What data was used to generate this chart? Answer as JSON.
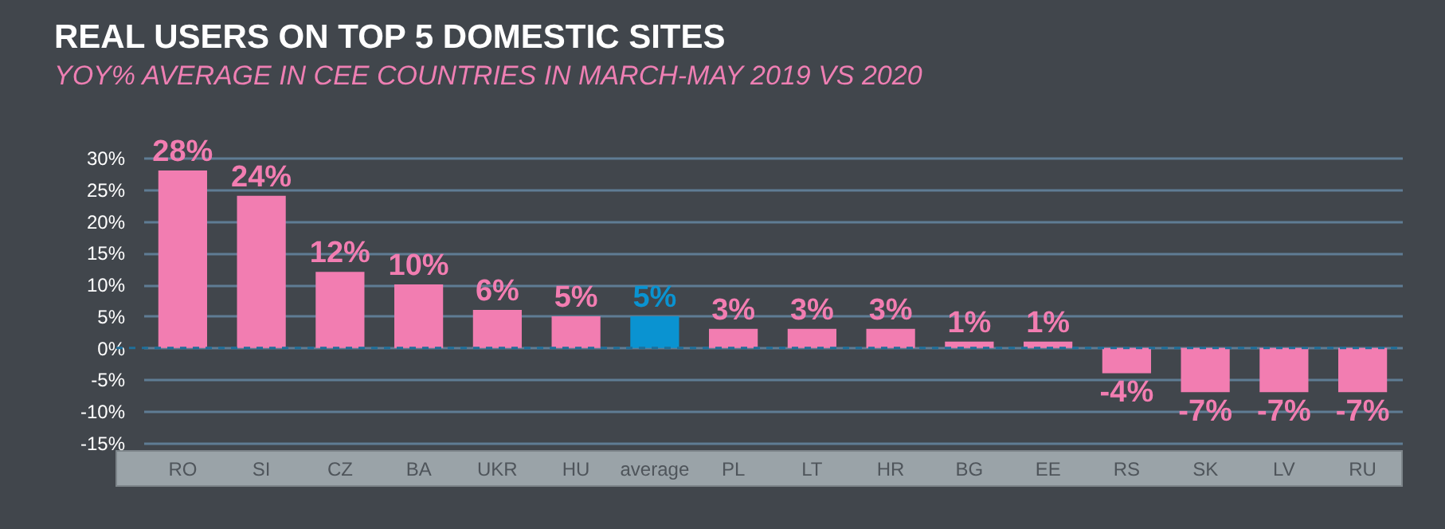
{
  "chart_data": {
    "type": "bar",
    "title": "REAL USERS ON TOP 5 DOMESTIC SITES",
    "subtitle": "YOY% AVERAGE IN CEE COUNTRIES IN MARCH-MAY 2019 VS 2020",
    "categories": [
      "RO",
      "SI",
      "CZ",
      "BA",
      "UKR",
      "HU",
      "average",
      "PL",
      "LT",
      "HR",
      "BG",
      "EE",
      "RS",
      "SK",
      "LV",
      "RU"
    ],
    "values": [
      28,
      24,
      12,
      10,
      6,
      5,
      5,
      3,
      3,
      3,
      1,
      1,
      -4,
      -7,
      -7,
      -7
    ],
    "value_labels": [
      "28%",
      "24%",
      "12%",
      "10%",
      "6%",
      "5%",
      "5%",
      "3%",
      "3%",
      "3%",
      "1%",
      "1%",
      "-4%",
      "-7%",
      "-7%",
      "-7%"
    ],
    "colors": [
      "#f27db1",
      "#f27db1",
      "#f27db1",
      "#f27db1",
      "#f27db1",
      "#f27db1",
      "#0a93d1",
      "#f27db1",
      "#f27db1",
      "#f27db1",
      "#f27db1",
      "#f27db1",
      "#f27db1",
      "#f27db1",
      "#f27db1",
      "#f27db1"
    ],
    "ylim": [
      -15,
      30
    ],
    "yticks": [
      {
        "value": 30,
        "label": "30%"
      },
      {
        "value": 25,
        "label": "25%"
      },
      {
        "value": 20,
        "label": "20%"
      },
      {
        "value": 15,
        "label": "15%"
      },
      {
        "value": 10,
        "label": "10%"
      },
      {
        "value": 5,
        "label": "5%"
      },
      {
        "value": 0,
        "label": "0%"
      },
      {
        "value": -5,
        "label": "-5%"
      },
      {
        "value": -10,
        "label": "-10%"
      },
      {
        "value": -15,
        "label": "-15%"
      }
    ],
    "grid": "y",
    "ref_lines": [
      {
        "axis": "y",
        "value": 0,
        "color": "#1f6f99",
        "line_style": "dashed"
      }
    ]
  }
}
